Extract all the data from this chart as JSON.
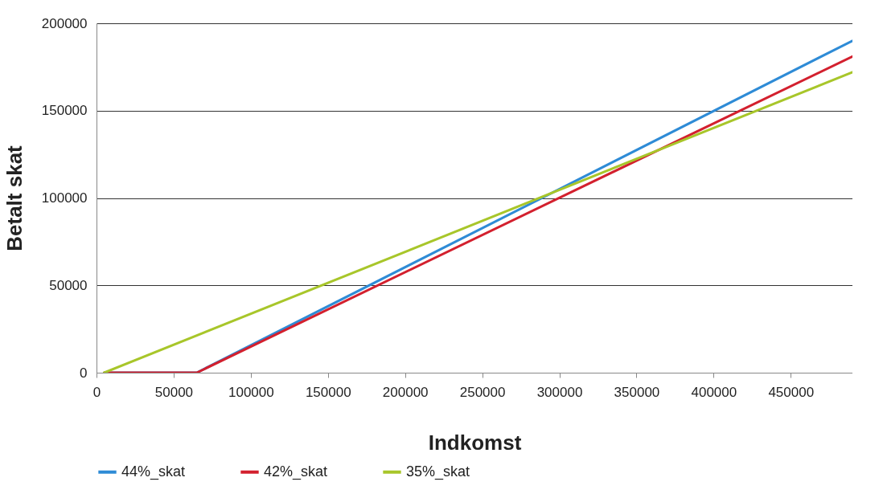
{
  "chart_data": {
    "type": "line",
    "xlabel": "Indkomst",
    "ylabel": "Betalt skat",
    "xlim": [
      0,
      490000
    ],
    "xticks": [
      0,
      50000,
      100000,
      150000,
      200000,
      250000,
      300000,
      350000,
      400000,
      450000
    ],
    "ylim": [
      0,
      200000
    ],
    "yticks": [
      0,
      50000,
      100000,
      150000,
      200000
    ],
    "grid": "y",
    "legend": "bottom",
    "marker": "none",
    "line_style": "solid",
    "series": [
      {
        "name": "44%_skat",
        "color": "#2e8bd6",
        "x": [
          5000,
          65000,
          490000
        ],
        "values": [
          0,
          0,
          190000
        ]
      },
      {
        "name": "42%_skat",
        "color": "#d3202e",
        "x": [
          5000,
          65000,
          490000
        ],
        "values": [
          0,
          0,
          181000
        ]
      },
      {
        "name": "35%_skat",
        "color": "#a8c62a",
        "x": [
          5000,
          490000
        ],
        "values": [
          0,
          172000
        ]
      }
    ]
  }
}
